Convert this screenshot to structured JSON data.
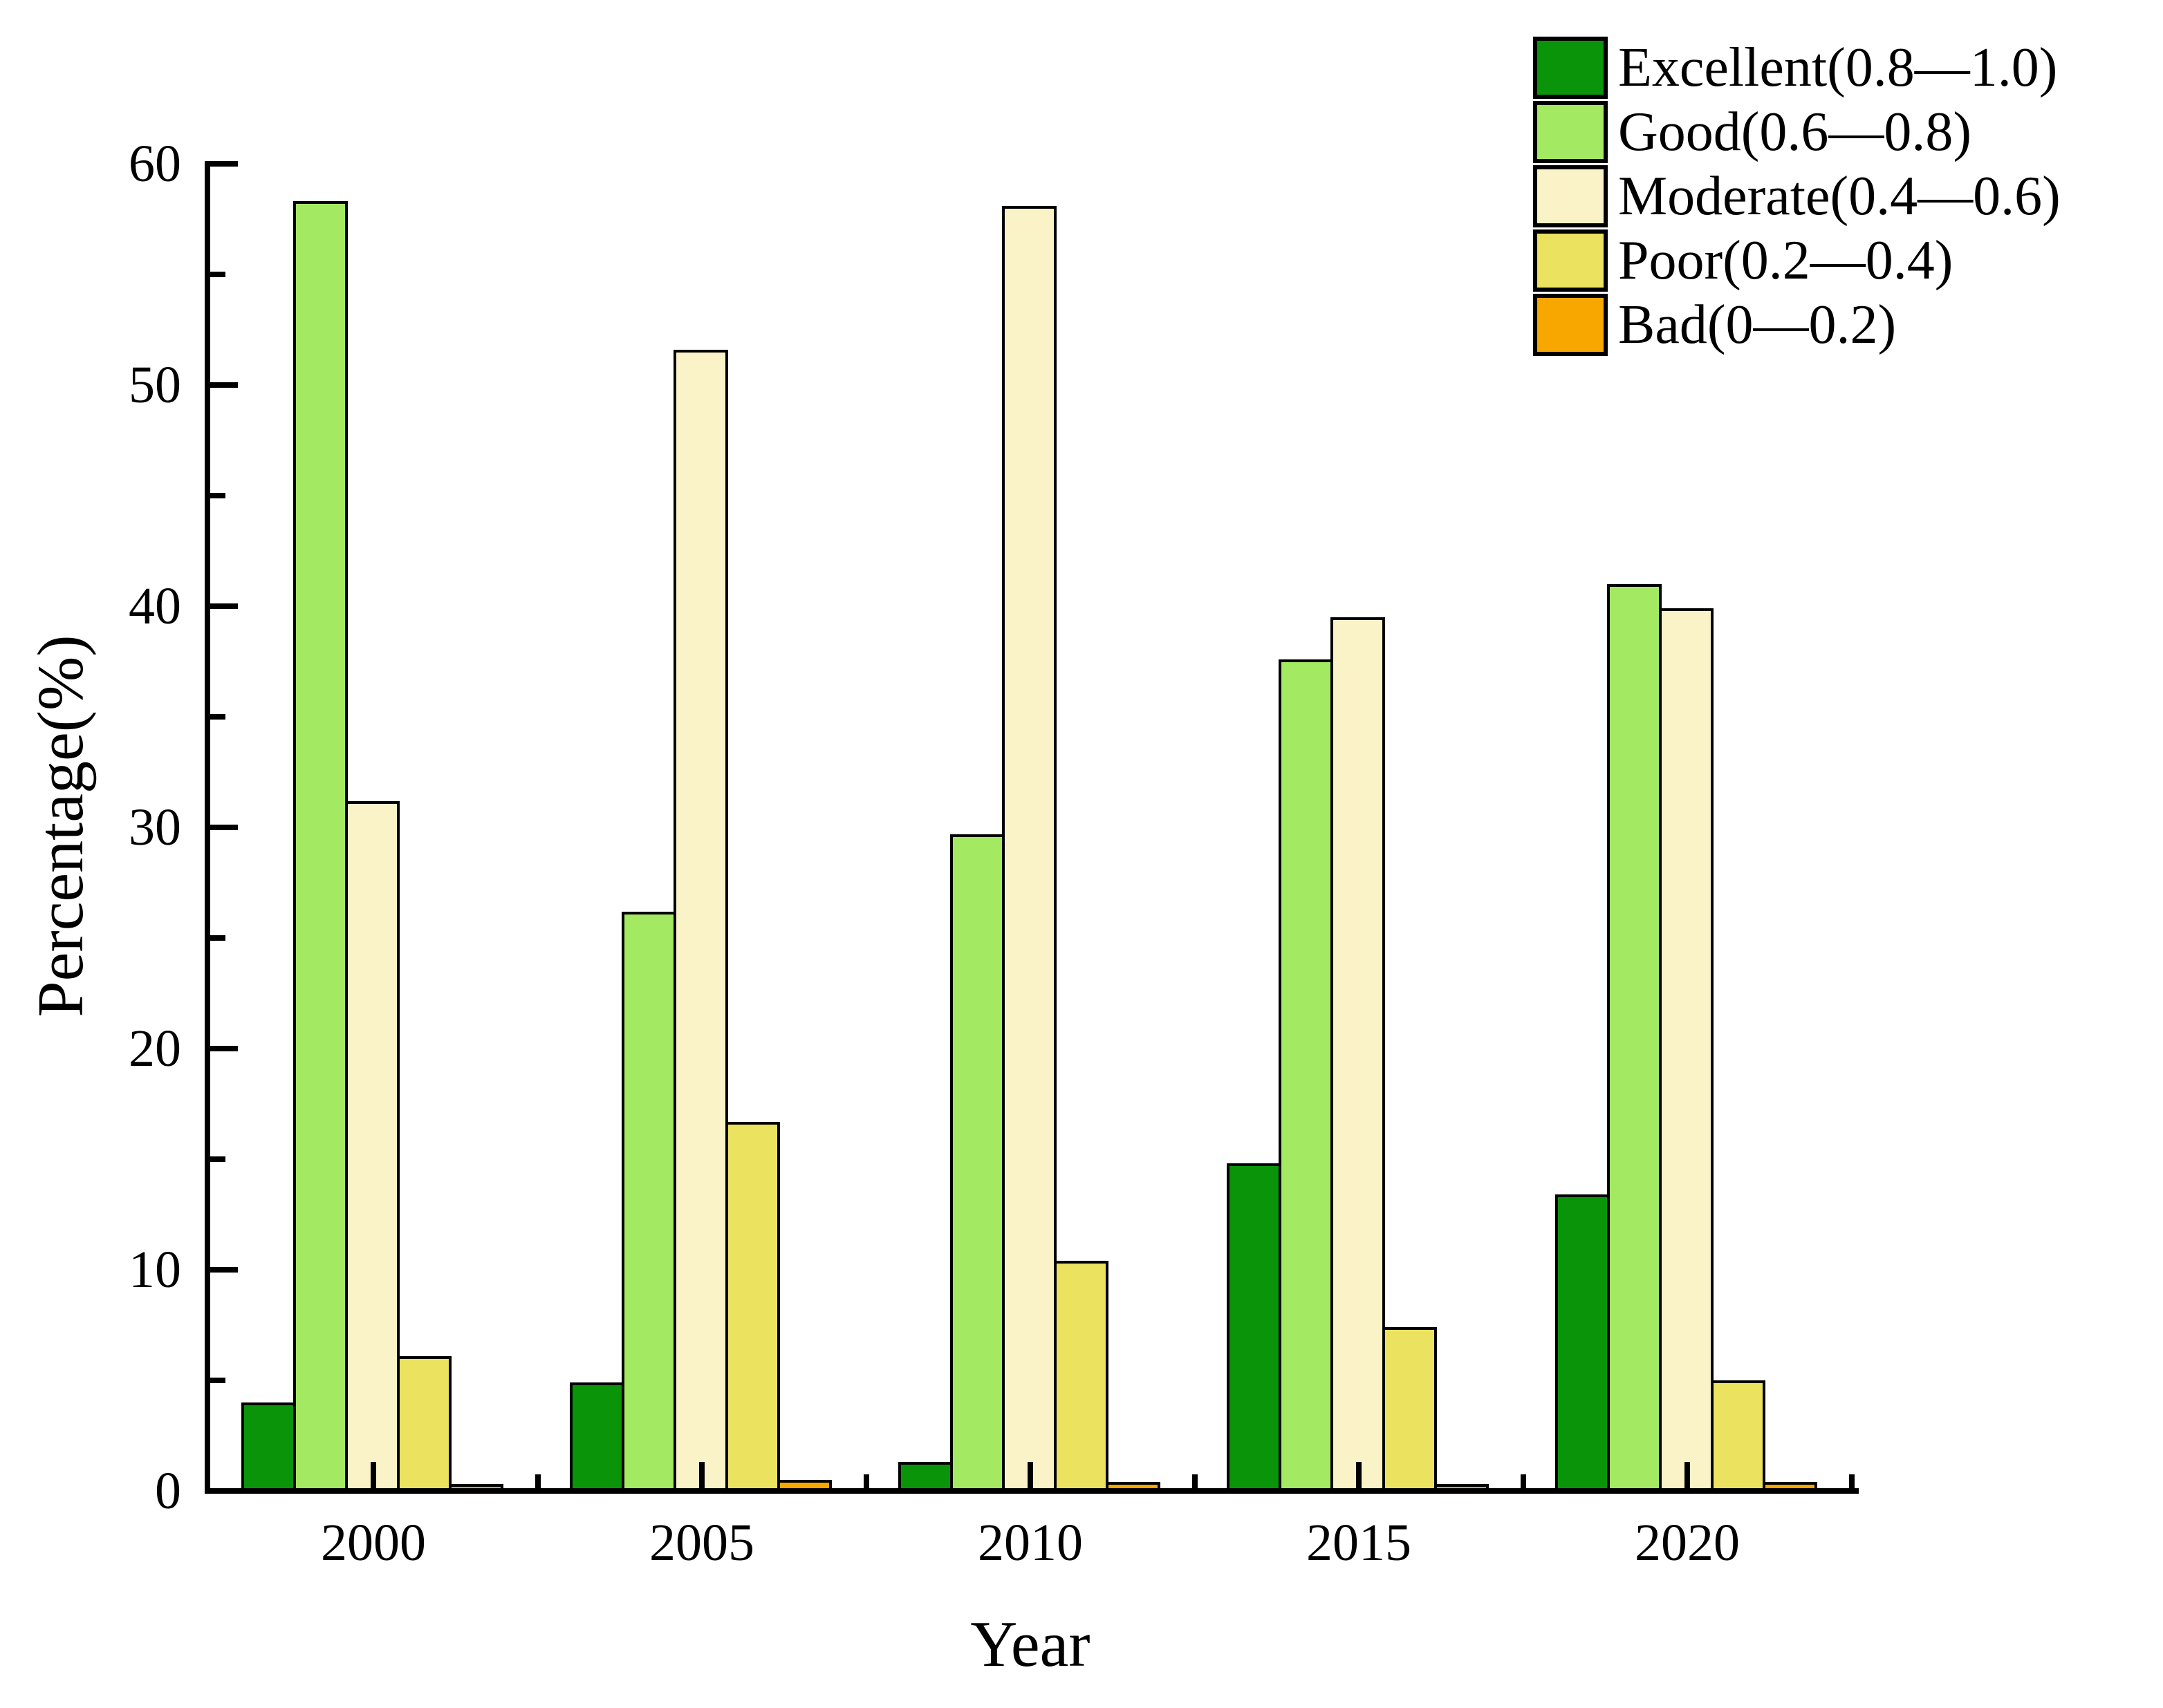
{
  "chart_data": {
    "type": "bar",
    "title": "",
    "xlabel": "Year",
    "ylabel": "Percentage(%)",
    "categories": [
      "2000",
      "2005",
      "2010",
      "2015",
      "2020"
    ],
    "series": [
      {
        "name": "Excellent(0.8—1.0)",
        "key": "excellent",
        "color": "#0a940a",
        "values": [
          4.0,
          4.9,
          1.3,
          14.8,
          13.4
        ]
      },
      {
        "name": "Good(0.6—0.8)",
        "key": "good",
        "color": "#a4e962",
        "values": [
          58.3,
          26.2,
          29.7,
          37.6,
          41.0
        ]
      },
      {
        "name": "Moderate(0.4—0.6)",
        "key": "moderate",
        "color": "#fbf3c8",
        "values": [
          31.2,
          51.6,
          58.1,
          39.5,
          39.9
        ]
      },
      {
        "name": "Poor(0.2—0.4)",
        "key": "poor",
        "color": "#ebe25f",
        "values": [
          6.1,
          16.7,
          10.4,
          7.4,
          5.0
        ]
      },
      {
        "name": "Bad(0—0.2)",
        "key": "bad",
        "color": "#f8a600",
        "values": [
          0.3,
          0.5,
          0.4,
          0.3,
          0.4
        ]
      }
    ],
    "ylim": [
      0,
      60
    ],
    "yticks": [
      0,
      10,
      20,
      30,
      40,
      50,
      60
    ],
    "ytick_step": 10,
    "yminor_step": 5,
    "grid": false,
    "legend_position": "top-right",
    "bar_outline_color": "#000000",
    "axis_color": "#000000"
  }
}
